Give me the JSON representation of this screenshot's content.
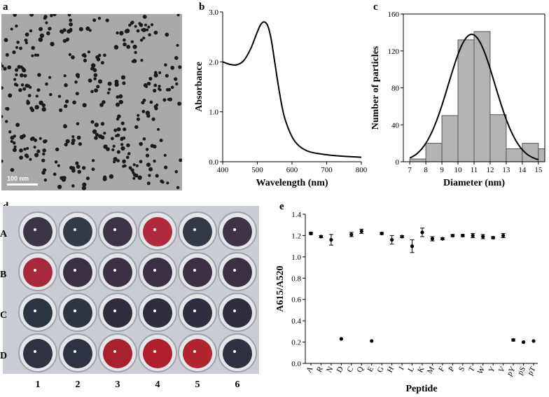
{
  "panels": {
    "a": {
      "label": "a",
      "scale_bar": "100 nm"
    },
    "b": {
      "label": "b"
    },
    "c": {
      "label": "c"
    },
    "d": {
      "label": "d",
      "rows": [
        "A",
        "B",
        "C",
        "D"
      ],
      "cols": [
        "1",
        "2",
        "3",
        "4",
        "5",
        "6"
      ],
      "wells": [
        [
          "#3b3545",
          "#313a45",
          "#3c3445",
          "#b0293c",
          "#333a45",
          "#3e3446"
        ],
        [
          "#a8283e",
          "#3a3042",
          "#3b3143",
          "#3a3042",
          "#3b3143",
          "#3a3042"
        ],
        [
          "#2c3440",
          "#2e3440",
          "#302c3c",
          "#2f2c3c",
          "#2f2e3e",
          "#2f2c3c"
        ],
        [
          "#2f3240",
          "#2d3340",
          "#a8202e",
          "#b0202c",
          "#b0252e",
          "#2e3240"
        ]
      ]
    },
    "e": {
      "label": "e"
    }
  },
  "chart_data": [
    {
      "panel": "b",
      "type": "line",
      "xlabel": "Wavelength (nm)",
      "ylabel": "Absorbance",
      "xlim": [
        400,
        800
      ],
      "ylim": [
        0.0,
        3.0
      ],
      "xticks": [
        "400",
        "500",
        "600",
        "700",
        "800"
      ],
      "yticks": [
        "0.0",
        "1.0",
        "2.0",
        "3.0"
      ],
      "x": [
        400,
        420,
        440,
        460,
        480,
        500,
        510,
        520,
        530,
        540,
        550,
        560,
        570,
        580,
        600,
        620,
        650,
        700,
        750,
        800
      ],
      "y": [
        2.0,
        1.95,
        1.94,
        2.02,
        2.25,
        2.6,
        2.75,
        2.8,
        2.72,
        2.45,
        2.0,
        1.55,
        1.15,
        0.85,
        0.5,
        0.32,
        0.2,
        0.14,
        0.11,
        0.09
      ]
    },
    {
      "panel": "c",
      "type": "bar",
      "xlabel": "Diameter (nm)",
      "ylabel": "Number of particles",
      "xlim": [
        6.6,
        15.4
      ],
      "ylim": [
        0,
        160
      ],
      "xticks": [
        "7",
        "8",
        "9",
        "10",
        "11",
        "12",
        "13",
        "14",
        "15"
      ],
      "yticks": [
        "0",
        "40",
        "80",
        "120",
        "160"
      ],
      "bins": [
        [
          7,
          8
        ],
        [
          8,
          9
        ],
        [
          9,
          10
        ],
        [
          10,
          11
        ],
        [
          11,
          12
        ],
        [
          12,
          13
        ],
        [
          13,
          14
        ],
        [
          14,
          15
        ],
        [
          15,
          16
        ]
      ],
      "values": [
        3,
        20,
        50,
        132,
        141,
        51,
        14,
        20,
        14
      ],
      "fit": {
        "type": "gaussian",
        "amplitude": 138,
        "mean": 10.85,
        "sigma": 1.45
      }
    },
    {
      "panel": "e",
      "type": "scatter",
      "xlabel": "Peptide",
      "ylabel": "A615/A520",
      "ylim": [
        0.0,
        1.4
      ],
      "yticks": [
        "0.0",
        "0.2",
        "0.4",
        "0.6",
        "0.8",
        "1.0",
        "1.2",
        "1.4"
      ],
      "categories": [
        "A",
        "R",
        "N",
        "D",
        "C",
        "Q",
        "E",
        "G",
        "H",
        "I",
        "L",
        "K",
        "M",
        "F",
        "P",
        "S",
        "T",
        "W",
        "Y",
        "V",
        "pY",
        "pS",
        "pT"
      ],
      "values": [
        1.22,
        1.19,
        1.16,
        0.23,
        1.21,
        1.24,
        0.21,
        1.22,
        1.16,
        1.19,
        1.1,
        1.23,
        1.17,
        1.17,
        1.2,
        1.2,
        1.2,
        1.19,
        1.18,
        1.2,
        0.22,
        0.2,
        0.21
      ],
      "errors": [
        0.01,
        0.01,
        0.05,
        0.0,
        0.02,
        0.02,
        0.0,
        0.01,
        0.04,
        0.01,
        0.06,
        0.04,
        0.02,
        0.01,
        0.01,
        0.01,
        0.02,
        0.02,
        0.01,
        0.02,
        0.01,
        0.0,
        0.0
      ]
    }
  ]
}
